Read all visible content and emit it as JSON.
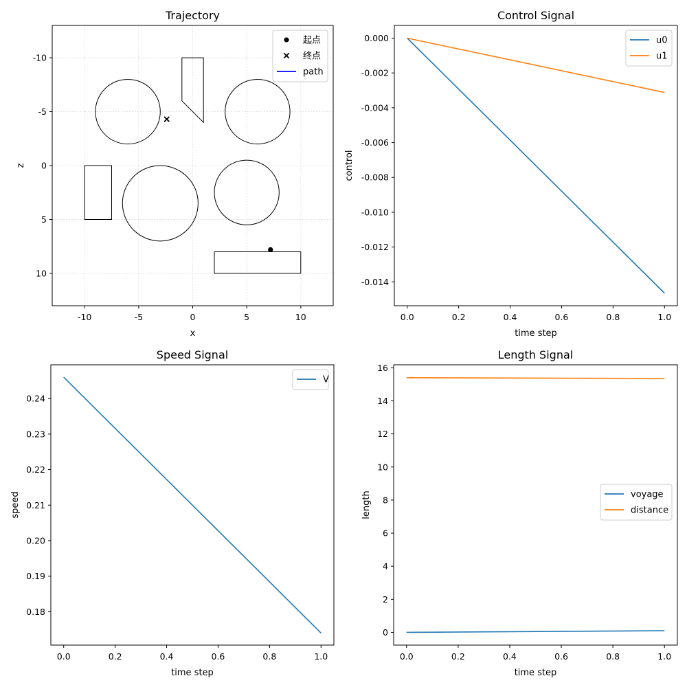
{
  "chart_data": [
    {
      "id": "trajectory",
      "type": "scatter",
      "title": "Trajectory",
      "xlabel": "x",
      "ylabel": "z",
      "xlim": [
        -13,
        13
      ],
      "ylim": [
        13,
        -13
      ],
      "y_inverted": true,
      "xticks": [
        -10,
        -5,
        0,
        5,
        10
      ],
      "yticks": [
        -10,
        -5,
        0,
        5,
        10
      ],
      "grid": true,
      "legend_position": "top-right",
      "legend": [
        {
          "label": "起点",
          "marker": "dot",
          "color": "#000000"
        },
        {
          "label": "终点",
          "marker": "x",
          "color": "#000000"
        },
        {
          "label": "path",
          "marker": "line",
          "color": "#0000ff"
        }
      ],
      "start_point": {
        "x": 7.2,
        "z": 7.8
      },
      "end_point": {
        "x": -2.4,
        "z": -4.3
      },
      "obstacles": {
        "circles": [
          {
            "cx": -6,
            "cz": -5,
            "r": 3
          },
          {
            "cx": 6,
            "cz": -5,
            "r": 3
          },
          {
            "cx": -3,
            "cz": 3.5,
            "r": 3.5
          },
          {
            "cx": 5,
            "cz": 2.5,
            "r": 3
          }
        ],
        "polygons": [
          [
            [
              -1,
              -10
            ],
            [
              1,
              -10
            ],
            [
              1,
              -4
            ],
            [
              -1,
              -6
            ]
          ],
          [
            [
              -10,
              0
            ],
            [
              -7.5,
              0
            ],
            [
              -7.5,
              5
            ],
            [
              -10,
              5
            ]
          ],
          [
            [
              2,
              8
            ],
            [
              10,
              8
            ],
            [
              10,
              10
            ],
            [
              2,
              10
            ]
          ]
        ]
      }
    },
    {
      "id": "control",
      "type": "line",
      "title": "Control Signal",
      "xlabel": "time step",
      "ylabel": "control",
      "xlim": [
        -0.05,
        1.05
      ],
      "ylim": [
        -0.01537,
        0.00073
      ],
      "xticks": [
        0.0,
        0.2,
        0.4,
        0.6,
        0.8,
        1.0
      ],
      "yticks": [
        0.0,
        -0.002,
        -0.004,
        -0.006,
        -0.008,
        -0.01,
        -0.012,
        -0.014
      ],
      "y_tick_decimals": 3,
      "grid": false,
      "legend_position": "top-right",
      "x": [
        0,
        1
      ],
      "series": [
        {
          "name": "u0",
          "color": "#1f77b4",
          "values": [
            0.0,
            -0.01465
          ]
        },
        {
          "name": "u1",
          "color": "#ff7f0e",
          "values": [
            0.0,
            -0.00312
          ]
        }
      ]
    },
    {
      "id": "speed",
      "type": "line",
      "title": "Speed Signal",
      "xlabel": "time step",
      "ylabel": "speed",
      "xlim": [
        -0.05,
        1.05
      ],
      "ylim": [
        0.1706,
        0.2495
      ],
      "xticks": [
        0.0,
        0.2,
        0.4,
        0.6,
        0.8,
        1.0
      ],
      "yticks": [
        0.18,
        0.19,
        0.2,
        0.21,
        0.22,
        0.23,
        0.24
      ],
      "y_tick_decimals": 2,
      "grid": false,
      "legend_position": "top-right",
      "x": [
        0,
        1
      ],
      "series": [
        {
          "name": "V",
          "color": "#1f77b4",
          "values": [
            0.246,
            0.174
          ]
        }
      ]
    },
    {
      "id": "length",
      "type": "line",
      "title": "Length Signal",
      "xlabel": "time step",
      "ylabel": "length",
      "xlim": [
        -0.05,
        1.05
      ],
      "ylim": [
        -0.77,
        16.18
      ],
      "xticks": [
        0.0,
        0.2,
        0.4,
        0.6,
        0.8,
        1.0
      ],
      "yticks": [
        0,
        2,
        4,
        6,
        8,
        10,
        12,
        14,
        16
      ],
      "y_tick_decimals": 0,
      "grid": false,
      "legend_position": "center-right",
      "x": [
        0,
        1
      ],
      "series": [
        {
          "name": "voyage",
          "color": "#1f77b4",
          "values": [
            0.0,
            0.1
          ]
        },
        {
          "name": "distance",
          "color": "#ff7f0e",
          "values": [
            15.4,
            15.35
          ]
        }
      ]
    }
  ]
}
